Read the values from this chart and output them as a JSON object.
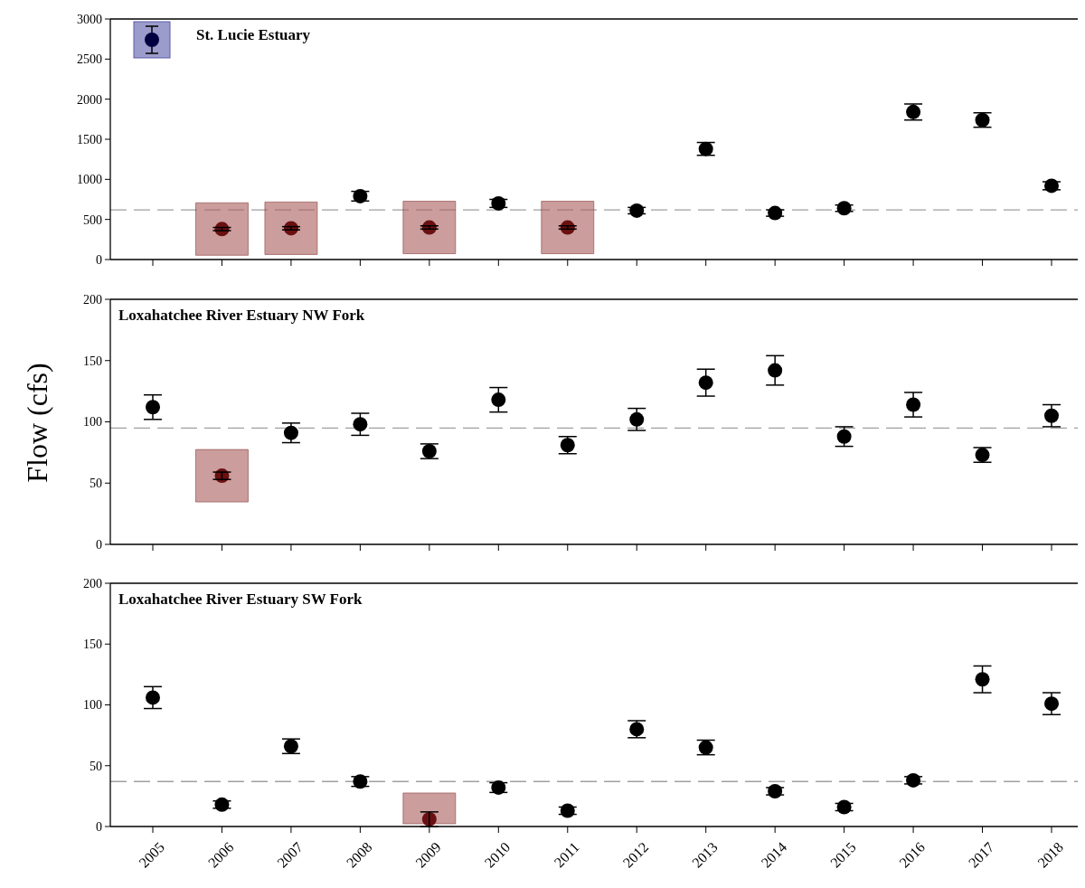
{
  "chart_data": [
    {
      "type": "scatter",
      "title": "St. Lucie Estuary",
      "categories": [
        "2005",
        "2006",
        "2007",
        "2008",
        "2009",
        "2010",
        "2011",
        "2012",
        "2013",
        "2014",
        "2015",
        "2016",
        "2017",
        "2018"
      ],
      "ylim": [
        0,
        3000
      ],
      "yticks": [
        0,
        500,
        1000,
        1500,
        2000,
        2500,
        3000
      ],
      "tick_labels": "y",
      "marker": "circle",
      "grid": false,
      "series": [
        {
          "color": "#000000",
          "values": [
            null,
            null,
            null,
            790,
            null,
            700,
            null,
            610,
            1380,
            580,
            640,
            1840,
            1740,
            920
          ],
          "errors": [
            null,
            null,
            null,
            60,
            null,
            50,
            null,
            40,
            80,
            40,
            40,
            100,
            90,
            50
          ]
        },
        {
          "color": "#6b1010",
          "values": [
            null,
            380,
            390,
            null,
            400,
            null,
            400,
            null,
            null,
            null,
            null,
            null,
            null,
            null
          ],
          "errors": [
            null,
            20,
            20,
            null,
            20,
            null,
            20,
            null,
            null,
            null,
            null,
            null,
            null,
            null
          ]
        }
      ],
      "ref_lines": [
        {
          "axis": "y",
          "value": 620,
          "color": "#a0a0a0",
          "line_style": "dashed"
        }
      ]
    },
    {
      "type": "scatter",
      "title": "Loxahatchee River Estuary NW Fork",
      "ylabel": "Flow (cfs)",
      "categories": [
        "2005",
        "2006",
        "2007",
        "2008",
        "2009",
        "2010",
        "2011",
        "2012",
        "2013",
        "2014",
        "2015",
        "2016",
        "2017",
        "2018"
      ],
      "ylim": [
        0,
        200
      ],
      "yticks": [
        0,
        50,
        100,
        150,
        200
      ],
      "tick_labels": "y",
      "marker": "circle",
      "grid": false,
      "series": [
        {
          "color": "#000000",
          "values": [
            112,
            null,
            91,
            98,
            76,
            118,
            81,
            102,
            132,
            142,
            88,
            114,
            73,
            105
          ],
          "errors": [
            10,
            null,
            8,
            9,
            6,
            10,
            7,
            9,
            11,
            12,
            8,
            10,
            6,
            9
          ]
        },
        {
          "color": "#6b1010",
          "values": [
            null,
            56,
            null,
            null,
            null,
            null,
            null,
            null,
            null,
            null,
            null,
            null,
            null,
            null
          ],
          "errors": [
            null,
            3,
            null,
            null,
            null,
            null,
            null,
            null,
            null,
            null,
            null,
            null,
            null,
            null
          ]
        }
      ],
      "ref_lines": [
        {
          "axis": "y",
          "value": 95,
          "color": "#a0a0a0",
          "line_style": "dashed"
        }
      ]
    },
    {
      "type": "scatter",
      "title": "Loxahatchee River Estuary SW Fork",
      "categories": [
        "2005",
        "2006",
        "2007",
        "2008",
        "2009",
        "2010",
        "2011",
        "2012",
        "2013",
        "2014",
        "2015",
        "2016",
        "2017",
        "2018"
      ],
      "ylim": [
        0,
        200
      ],
      "yticks": [
        0,
        50,
        100,
        150,
        200
      ],
      "marker": "circle",
      "grid": false,
      "series": [
        {
          "color": "#000000",
          "values": [
            106,
            18,
            66,
            37,
            null,
            32,
            13,
            80,
            65,
            29,
            16,
            38,
            121,
            101
          ],
          "errors": [
            9,
            3,
            6,
            4,
            null,
            4,
            3,
            7,
            6,
            3,
            3,
            3,
            11,
            9
          ]
        },
        {
          "color": "#6b1010",
          "values": [
            null,
            null,
            null,
            null,
            6,
            null,
            null,
            null,
            null,
            null,
            null,
            null,
            null,
            null
          ],
          "errors": [
            null,
            null,
            null,
            null,
            6,
            null,
            null,
            null,
            null,
            null,
            null,
            null,
            null,
            null
          ]
        }
      ],
      "ref_lines": [
        {
          "axis": "y",
          "value": 37,
          "color": "#a0a0a0",
          "line_style": "dashed"
        }
      ]
    }
  ]
}
